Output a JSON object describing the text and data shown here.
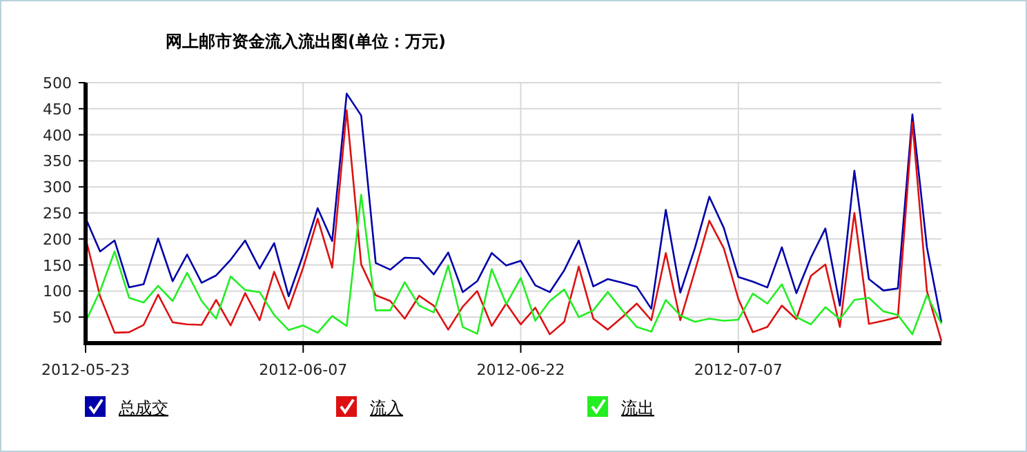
{
  "chart_data": {
    "type": "line",
    "title": "网上邮市资金流入流出图(单位：万元)",
    "x": [
      "2012-05-23",
      "2012-05-24",
      "2012-05-25",
      "2012-05-26",
      "2012-05-27",
      "2012-05-28",
      "2012-05-29",
      "2012-05-30",
      "2012-05-31",
      "2012-06-01",
      "2012-06-02",
      "2012-06-03",
      "2012-06-04",
      "2012-06-05",
      "2012-06-06",
      "2012-06-07",
      "2012-06-08",
      "2012-06-09",
      "2012-06-10",
      "2012-06-11",
      "2012-06-12",
      "2012-06-13",
      "2012-06-14",
      "2012-06-15",
      "2012-06-16",
      "2012-06-17",
      "2012-06-18",
      "2012-06-19",
      "2012-06-20",
      "2012-06-21",
      "2012-06-22",
      "2012-06-23",
      "2012-06-24",
      "2012-06-25",
      "2012-06-26",
      "2012-06-27",
      "2012-06-28",
      "2012-06-29",
      "2012-06-30",
      "2012-07-01",
      "2012-07-02",
      "2012-07-03",
      "2012-07-04",
      "2012-07-05",
      "2012-07-06",
      "2012-07-07",
      "2012-07-08",
      "2012-07-09",
      "2012-07-10",
      "2012-07-11",
      "2012-07-12",
      "2012-07-13",
      "2012-07-14",
      "2012-07-15",
      "2012-07-16",
      "2012-07-17",
      "2012-07-18",
      "2012-07-19",
      "2012-07-20",
      "2012-07-21"
    ],
    "xlim": [
      "2012-05-23",
      "2012-07-21"
    ],
    "xticks": [
      "2012-05-23",
      "2012-06-07",
      "2012-06-22",
      "2012-07-07"
    ],
    "ylim": [
      0,
      500
    ],
    "yticks": [
      50,
      100,
      150,
      200,
      250,
      300,
      350,
      400,
      450,
      500
    ],
    "grid": true,
    "legend": "bottom",
    "marker": "none",
    "line_style": "solid",
    "series": [
      {
        "name": "总成交",
        "color": "#0000aa",
        "values": [
          240,
          176,
          197,
          107,
          113,
          201,
          119,
          170,
          116,
          130,
          160,
          197,
          143,
          192,
          90,
          170,
          259,
          196,
          479,
          437,
          154,
          141,
          164,
          163,
          132,
          174,
          98,
          119,
          173,
          149,
          158,
          111,
          98,
          140,
          197,
          109,
          123,
          116,
          108,
          66,
          256,
          97,
          182,
          281,
          221,
          127,
          118,
          107,
          184,
          96,
          164,
          220,
          72,
          331,
          123,
          101,
          105,
          439,
          184,
          40
        ]
      },
      {
        "name": "流入",
        "color": "#dd1111",
        "values": [
          202,
          90,
          20,
          21,
          35,
          93,
          40,
          36,
          35,
          83,
          34,
          96,
          44,
          137,
          66,
          145,
          239,
          145,
          447,
          151,
          92,
          81,
          47,
          91,
          72,
          26,
          70,
          100,
          33,
          76,
          36,
          68,
          17,
          41,
          147,
          47,
          26,
          50,
          76,
          44,
          173,
          44,
          138,
          235,
          182,
          85,
          21,
          31,
          72,
          46,
          129,
          151,
          31,
          250,
          37,
          43,
          50,
          424,
          100,
          4
        ]
      },
      {
        "name": "流出",
        "color": "#22ee22",
        "values": [
          41,
          100,
          176,
          87,
          78,
          110,
          81,
          135,
          81,
          47,
          128,
          102,
          98,
          54,
          25,
          34,
          20,
          52,
          33,
          285,
          63,
          63,
          117,
          72,
          59,
          149,
          31,
          18,
          142,
          75,
          125,
          43,
          81,
          103,
          50,
          63,
          98,
          63,
          31,
          22,
          83,
          53,
          41,
          47,
          43,
          45,
          95,
          76,
          113,
          50,
          36,
          69,
          46,
          83,
          87,
          61,
          54,
          17,
          92,
          37
        ]
      }
    ]
  }
}
